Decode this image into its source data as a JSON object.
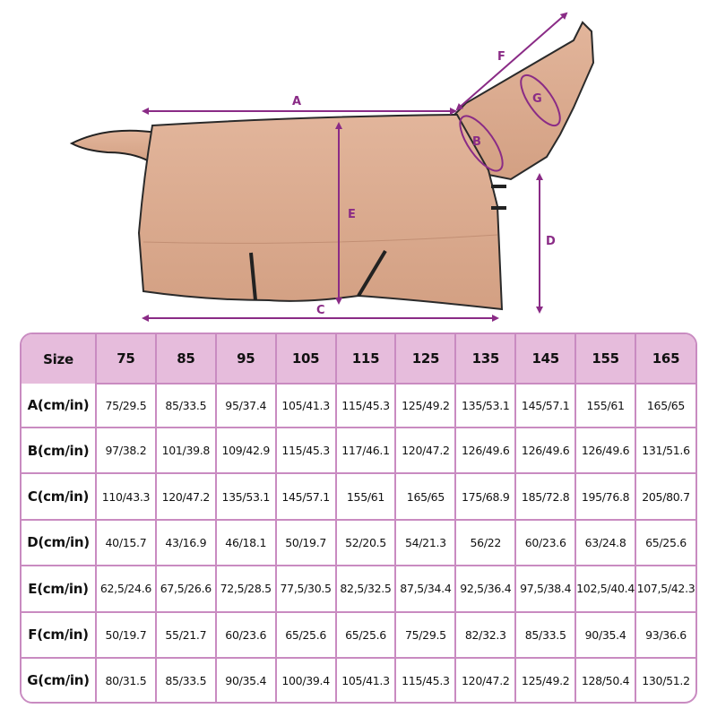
{
  "diagram": {
    "labels": [
      "A",
      "B",
      "C",
      "D",
      "E",
      "F",
      "G"
    ],
    "accent_color": "#8a2b86",
    "rug_color": "#dcad92"
  },
  "table": {
    "header_color": "#e6bcdc",
    "border_color": "#c98bc1",
    "columns": [
      "Size",
      "75",
      "85",
      "95",
      "105",
      "115",
      "125",
      "135",
      "145",
      "155",
      "165"
    ],
    "rows": [
      {
        "label": "A(cm/in)",
        "values": [
          "75/29.5",
          "85/33.5",
          "95/37.4",
          "105/41.3",
          "115/45.3",
          "125/49.2",
          "135/53.1",
          "145/57.1",
          "155/61",
          "165/65"
        ]
      },
      {
        "label": "B(cm/in)",
        "values": [
          "97/38.2",
          "101/39.8",
          "109/42.9",
          "115/45.3",
          "117/46.1",
          "120/47.2",
          "126/49.6",
          "126/49.6",
          "126/49.6",
          "131/51.6"
        ]
      },
      {
        "label": "C(cm/in)",
        "values": [
          "110/43.3",
          "120/47.2",
          "135/53.1",
          "145/57.1",
          "155/61",
          "165/65",
          "175/68.9",
          "185/72.8",
          "195/76.8",
          "205/80.7"
        ]
      },
      {
        "label": "D(cm/in)",
        "values": [
          "40/15.7",
          "43/16.9",
          "46/18.1",
          "50/19.7",
          "52/20.5",
          "54/21.3",
          "56/22",
          "60/23.6",
          "63/24.8",
          "65/25.6"
        ]
      },
      {
        "label": "E(cm/in)",
        "values": [
          "62,5/24.6",
          "67,5/26.6",
          "72,5/28.5",
          "77,5/30.5",
          "82,5/32.5",
          "87,5/34.4",
          "92,5/36.4",
          "97,5/38.4",
          "102,5/40.4",
          "107,5/42.3"
        ]
      },
      {
        "label": "F(cm/in)",
        "values": [
          "50/19.7",
          "55/21.7",
          "60/23.6",
          "65/25.6",
          "65/25.6",
          "75/29.5",
          "82/32.3",
          "85/33.5",
          "90/35.4",
          "93/36.6"
        ]
      },
      {
        "label": "G(cm/in)",
        "values": [
          "80/31.5",
          "85/33.5",
          "90/35.4",
          "100/39.4",
          "105/41.3",
          "115/45.3",
          "120/47.2",
          "125/49.2",
          "128/50.4",
          "130/51.2"
        ]
      }
    ]
  }
}
